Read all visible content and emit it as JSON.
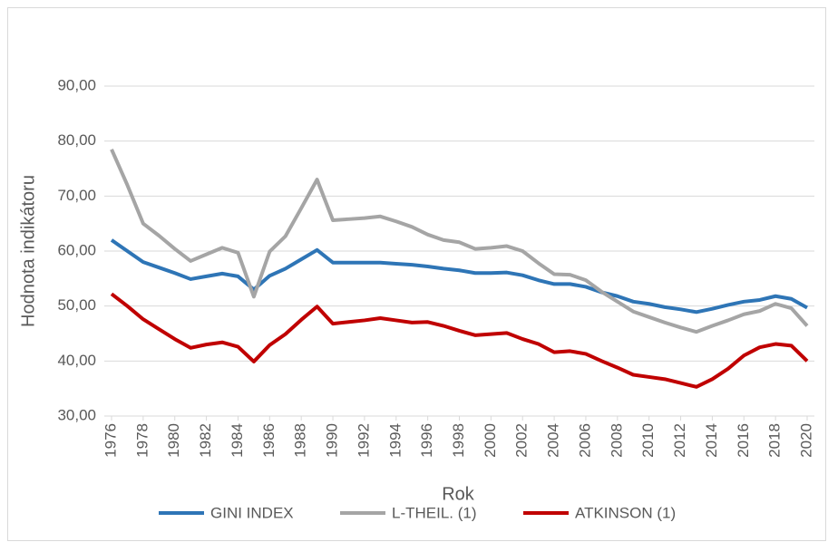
{
  "chart_data": {
    "type": "line",
    "x_label": "Rok",
    "y_label": "Hodnota indikátoru",
    "x": [
      1976,
      1977,
      1978,
      1979,
      1980,
      1981,
      1982,
      1983,
      1984,
      1985,
      1986,
      1987,
      1988,
      1989,
      1990,
      1991,
      1992,
      1993,
      1994,
      1995,
      1996,
      1997,
      1998,
      1999,
      2000,
      2001,
      2002,
      2003,
      2004,
      2005,
      2006,
      2007,
      2008,
      2009,
      2010,
      2011,
      2012,
      2013,
      2014,
      2015,
      2016,
      2017,
      2018,
      2019,
      2020
    ],
    "xlim": [
      1976,
      2020
    ],
    "xticks": [
      1976,
      1978,
      1980,
      1982,
      1984,
      1986,
      1988,
      1990,
      1992,
      1994,
      1996,
      1998,
      2000,
      2002,
      2004,
      2006,
      2008,
      2010,
      2012,
      2014,
      2016,
      2018,
      2020
    ],
    "ylim": [
      30,
      90
    ],
    "yticks": [
      {
        "value": 30,
        "label": "30,00"
      },
      {
        "value": 40,
        "label": "40,00"
      },
      {
        "value": 50,
        "label": "50,00"
      },
      {
        "value": 60,
        "label": "60,00"
      },
      {
        "value": 70,
        "label": "70,00"
      },
      {
        "value": 80,
        "label": "80,00"
      },
      {
        "value": 90,
        "label": "90,00"
      }
    ],
    "grid": true,
    "legend": "bottom",
    "series": [
      {
        "name": "GINI INDEX",
        "color": "#2e75b6",
        "values": [
          62,
          60,
          58,
          57,
          56,
          54.9,
          55.4,
          55.9,
          55.4,
          53,
          55.5,
          56.8,
          58.5,
          60.2,
          57.9,
          57.9,
          57.9,
          57.9,
          57.7,
          57.5,
          57.2,
          56.8,
          56.5,
          56,
          56,
          56.1,
          55.6,
          54.7,
          54,
          54,
          53.5,
          52.5,
          51.8,
          50.8,
          50.4,
          49.8,
          49.4,
          48.9,
          49.5,
          50.2,
          50.8,
          51.1,
          51.8,
          51.3,
          49.7
        ]
      },
      {
        "name": "L-THEIL. (1)",
        "color": "#a5a5a5",
        "values": [
          78.5,
          72,
          65,
          62.8,
          60.4,
          58.2,
          59.4,
          60.6,
          59.7,
          51.7,
          59.9,
          62.7,
          67.8,
          73,
          65.6,
          65.8,
          66,
          66.3,
          65.4,
          64.4,
          63,
          62,
          61.6,
          60.4,
          60.6,
          60.9,
          60,
          57.8,
          55.8,
          55.7,
          54.7,
          52.6,
          50.8,
          49,
          48,
          47,
          46.1,
          45.3,
          46.4,
          47.4,
          48.5,
          49.1,
          50.4,
          49.6,
          46.4
        ]
      },
      {
        "name": "ATKINSON (1)",
        "color": "#c00000",
        "values": [
          52.2,
          50,
          47.6,
          45.8,
          44,
          42.4,
          43,
          43.4,
          42.6,
          39.9,
          42.9,
          44.9,
          47.5,
          49.9,
          46.8,
          47.1,
          47.4,
          47.8,
          47.4,
          47,
          47.1,
          46.4,
          45.5,
          44.7,
          44.9,
          45.1,
          44,
          43.1,
          41.6,
          41.8,
          41.3,
          40,
          38.8,
          37.5,
          37.1,
          36.7,
          36,
          35.3,
          36.7,
          38.6,
          41,
          42.5,
          43.1,
          42.8,
          40
        ]
      }
    ]
  }
}
